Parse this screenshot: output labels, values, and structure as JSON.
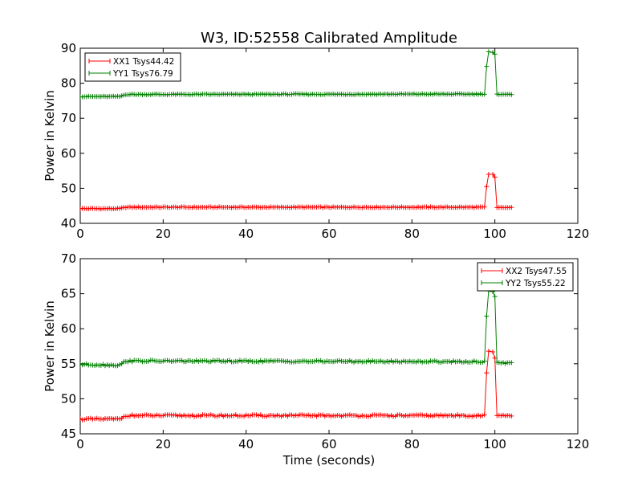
{
  "figure": {
    "title": "W3, ID:52558 Calibrated Amplitude",
    "xlabel": "Time (seconds)"
  },
  "chart_data": [
    {
      "type": "line",
      "ylabel": "Power in Kelvin",
      "xlim": [
        0,
        120
      ],
      "ylim": [
        40,
        90
      ],
      "xticks": [
        0,
        20,
        40,
        60,
        80,
        100,
        120
      ],
      "yticks": [
        40,
        50,
        60,
        70,
        80,
        90
      ],
      "grid": false,
      "legend": "top-left",
      "series": [
        {
          "name": "XX1 Tsys44.42",
          "color": "#ff0000",
          "baseline": [
            [
              0,
              44.2
            ],
            [
              9.5,
              44.2
            ],
            [
              11,
              44.6
            ],
            [
              97.5,
              44.6
            ]
          ],
          "spike": [
            [
              98,
              50.5
            ],
            [
              98.5,
              54.0
            ],
            [
              99.5,
              54.0
            ],
            [
              100,
              53.2
            ],
            [
              100.5,
              44.5
            ]
          ],
          "tail_end": 104,
          "tail_value": 44.5
        },
        {
          "name": "YY1 Tsys76.79",
          "color": "#008000",
          "baseline": [
            [
              0,
              76.2
            ],
            [
              9.5,
              76.2
            ],
            [
              11,
              76.8
            ],
            [
              97.5,
              76.9
            ]
          ],
          "spike": [
            [
              98,
              84.8
            ],
            [
              98.5,
              89.0
            ],
            [
              99.5,
              88.8
            ],
            [
              100,
              88.3
            ],
            [
              100.5,
              76.9
            ]
          ],
          "tail_end": 104,
          "tail_value": 76.8
        }
      ]
    },
    {
      "type": "line",
      "ylabel": "Power in Kelvin",
      "xlabel": "Time (seconds)",
      "xlim": [
        0,
        120
      ],
      "ylim": [
        45,
        70
      ],
      "xticks": [
        0,
        20,
        40,
        60,
        80,
        100,
        120
      ],
      "yticks": [
        45,
        50,
        55,
        60,
        65,
        70
      ],
      "grid": false,
      "legend": "top-right",
      "series": [
        {
          "name": "XX2 Tsys47.55",
          "color": "#ff0000",
          "baseline": [
            [
              0,
              47.1
            ],
            [
              9.5,
              47.1
            ],
            [
              11,
              47.6
            ],
            [
              97.5,
              47.6
            ]
          ],
          "spike": [
            [
              98,
              53.7
            ],
            [
              98.5,
              56.8
            ],
            [
              99.5,
              56.7
            ],
            [
              100,
              55.8
            ],
            [
              100.5,
              47.6
            ]
          ],
          "tail_end": 104,
          "tail_value": 47.6
        },
        {
          "name": "YY2 Tsys55.22",
          "color": "#008000",
          "baseline": [
            [
              0,
              54.9
            ],
            [
              9.5,
              54.8
            ],
            [
              11,
              55.4
            ],
            [
              97.5,
              55.3
            ]
          ],
          "spike": [
            [
              98,
              61.8
            ],
            [
              98.5,
              65.4
            ],
            [
              99.5,
              65.3
            ],
            [
              100,
              64.6
            ],
            [
              100.5,
              55.2
            ]
          ],
          "tail_end": 104,
          "tail_value": 55.1
        }
      ]
    }
  ]
}
